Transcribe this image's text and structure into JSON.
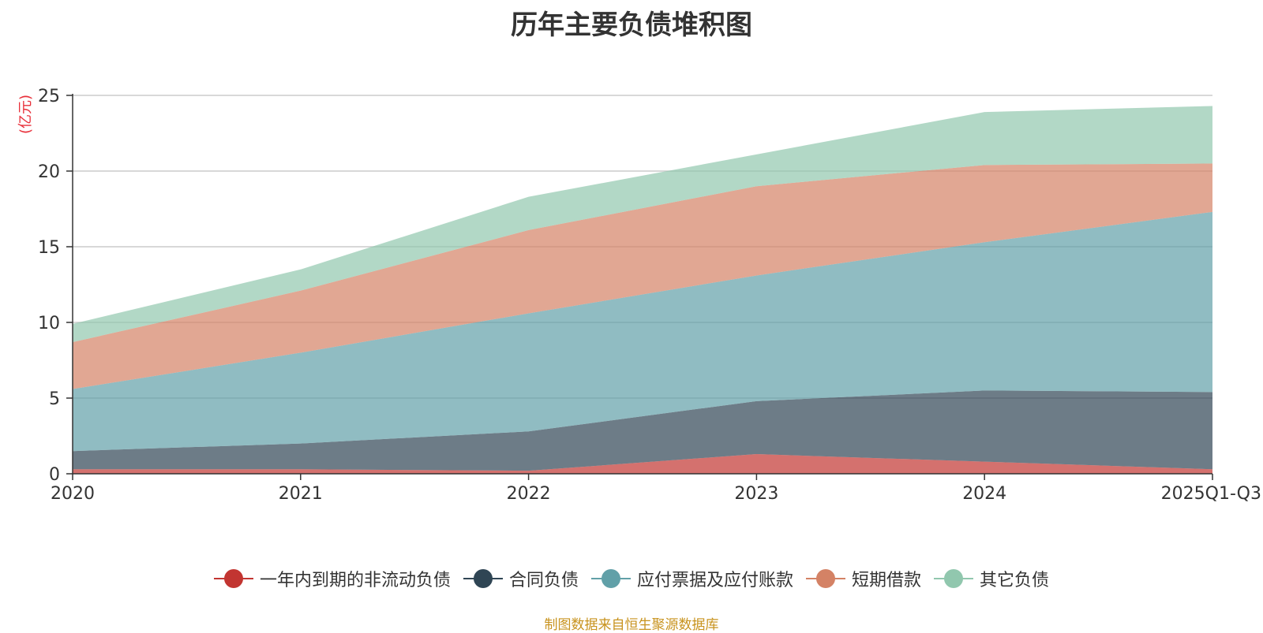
{
  "chart_data": {
    "type": "area",
    "stacked": true,
    "title": "历年主要负债堆积图",
    "ylabel": "(亿元)",
    "xlabel": "",
    "categories": [
      "2020",
      "2021",
      "2022",
      "2023",
      "2024",
      "2025Q1-Q3"
    ],
    "ylim": [
      0,
      25
    ],
    "yticks": [
      0,
      5,
      10,
      15,
      20,
      25
    ],
    "grid": true,
    "legend_position": "bottom-center",
    "series": [
      {
        "name": "一年内到期的非流动负债",
        "color": "#c23531",
        "values": [
          0.3,
          0.3,
          0.2,
          1.3,
          0.8,
          0.3
        ]
      },
      {
        "name": "合同负债",
        "color": "#2f4554",
        "values": [
          1.2,
          1.7,
          2.6,
          3.5,
          4.7,
          5.1
        ]
      },
      {
        "name": "应付票据及应付账款",
        "color": "#61a0a8",
        "values": [
          4.1,
          6.0,
          7.8,
          8.3,
          9.8,
          11.9
        ]
      },
      {
        "name": "短期借款",
        "color": "#d48265",
        "values": [
          3.1,
          4.1,
          5.5,
          5.9,
          5.1,
          3.2
        ]
      },
      {
        "name": "其它负债",
        "color": "#91c7ae",
        "values": [
          1.2,
          1.4,
          2.2,
          2.1,
          3.5,
          3.8
        ]
      }
    ],
    "source_note": "制图数据来自恒生聚源数据库"
  }
}
